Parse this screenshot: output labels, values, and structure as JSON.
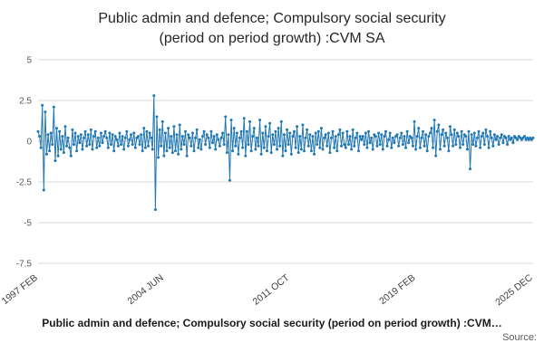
{
  "title": {
    "line1": "Public admin and defence; Compulsory social security",
    "line2": "(period on period growth) :CVM SA"
  },
  "legend_label": "Public admin and defence; Compulsory social security (period on period growth) :CVM…",
  "source_label": "Source:",
  "colors": {
    "series": "#1f77b4",
    "gridline": "#d9d9d9",
    "tick_text": "#595959",
    "x_tick_text": "#404040"
  },
  "chart_data": {
    "type": "line",
    "title": "Public admin and defence; Compulsory social security (period on period growth) :CVM SA",
    "xlabel": "",
    "ylabel": "",
    "ylim": [
      -7.5,
      5
    ],
    "y_ticks": [
      5,
      2.5,
      0,
      -2.5,
      -5,
      -7.5
    ],
    "grid": true,
    "legend_position": "bottom",
    "x_start": "1997 FEB",
    "x_end": "2025 DEC",
    "frequency": "monthly",
    "x_ticks": [
      {
        "index": 0,
        "label": "1997 FEB"
      },
      {
        "index": 88,
        "label": "2004 JUN"
      },
      {
        "index": 176,
        "label": "2011 OCT"
      },
      {
        "index": 264,
        "label": "2019 FEB"
      },
      {
        "index": 346,
        "label": "2025 DEC"
      }
    ],
    "values": [
      0.6,
      0.3,
      -0.4,
      2.2,
      -3.0,
      1.8,
      -0.8,
      0.4,
      -0.6,
      0.5,
      -0.2,
      2.1,
      -1.2,
      0.8,
      -0.9,
      0.6,
      -0.5,
      0.3,
      -0.7,
      0.9,
      -0.3,
      0.2,
      -0.4,
      -0.9,
      0.7,
      -0.2,
      0.5,
      -0.6,
      0.3,
      -0.1,
      0.4,
      -0.5,
      0.2,
      0.6,
      -0.3,
      0.4,
      -0.2,
      0.7,
      -0.5,
      0.3,
      0.6,
      -0.4,
      0.2,
      -0.3,
      0.5,
      -0.1,
      0.3,
      0.6,
      0.2,
      -0.4,
      0.5,
      -0.2,
      0.4,
      -0.6,
      0.3,
      0.1,
      -0.3,
      0.5,
      -0.2,
      0.3,
      -0.5,
      0.2,
      0.6,
      -0.3,
      0.1,
      0.4,
      -0.2,
      0.5,
      -0.4,
      0.2,
      0.3,
      -0.2,
      0.4,
      -0.6,
      0.8,
      -0.4,
      0.6,
      -0.3,
      0.5,
      0.2,
      -0.5,
      2.8,
      -4.2,
      1.5,
      -1.0,
      0.7,
      -0.3,
      1.2,
      -0.9,
      0.5,
      -0.6,
      0.8,
      -0.4,
      0.3,
      -0.7,
      0.9,
      -0.6,
      0.4,
      -0.8,
      1.0,
      -0.5,
      0.3,
      -0.2,
      0.6,
      -0.9,
      0.4,
      0.2,
      -0.3,
      0.5,
      -0.6,
      0.2,
      0.7,
      -0.4,
      0.1,
      -0.5,
      0.3,
      0.6,
      -0.2,
      0.4,
      0.2,
      -0.4,
      0.6,
      -0.1,
      0.3,
      -0.5,
      0.4,
      0.1,
      -0.3,
      0.2,
      0.5,
      -0.2,
      1.5,
      -0.7,
      0.4,
      -2.4,
      1.3,
      -0.6,
      0.8,
      -0.3,
      0.5,
      -0.8,
      0.2,
      0.6,
      -0.4,
      1.4,
      -0.9,
      0.6,
      -0.2,
      1.2,
      -0.6,
      0.3,
      0.8,
      -0.5,
      0.2,
      -0.3,
      1.3,
      -0.8,
      0.5,
      -0.4,
      0.9,
      -0.6,
      0.3,
      1.1,
      -0.7,
      0.4,
      -0.2,
      0.6,
      -0.5,
      0.8,
      -0.3,
      1.2,
      -0.9,
      0.4,
      -0.6,
      0.7,
      -0.2,
      0.5,
      -0.8,
      0.3,
      0.6,
      -0.4,
      0.9,
      -0.7,
      0.3,
      -0.5,
      1.0,
      -0.6,
      0.2,
      0.7,
      -0.3,
      0.4,
      -0.6,
      0.3,
      -0.8,
      0.5,
      -0.2,
      0.6,
      -0.4,
      0.8,
      -0.5,
      0.2,
      0.4,
      -0.3,
      0.5,
      -0.7,
      0.2,
      0.6,
      -0.4,
      0.3,
      -0.6,
      0.4,
      0.7,
      -0.3,
      0.5,
      -0.2,
      -0.4,
      0.6,
      -0.2,
      0.3,
      -0.5,
      0.7,
      -0.3,
      0.2,
      0.5,
      -0.6,
      0.3,
      0.1,
      0.3,
      -0.2,
      0.5,
      -0.4,
      0.6,
      -0.1,
      0.2,
      -0.5,
      0.4,
      0.3,
      -0.3,
      0.5,
      -0.2,
      0.4,
      -0.5,
      0.3,
      0.6,
      -0.3,
      0.1,
      0.5,
      -0.4,
      0.2,
      -0.1,
      0.3,
      0.4,
      -0.3,
      0.2,
      0.5,
      -0.2,
      0.3,
      -0.4,
      0.6,
      -0.1,
      0.3,
      0.2,
      -0.3,
      1.2,
      -0.5,
      0.3,
      0.8,
      -0.4,
      0.2,
      0.6,
      -0.3,
      0.4,
      -0.6,
      0.3,
      0.5,
      0.8,
      -0.4,
      1.3,
      -0.9,
      0.6,
      1.0,
      -0.5,
      0.4,
      0.7,
      -0.3,
      0.5,
      0.2,
      -0.6,
      0.9,
      0.4,
      -0.3,
      0.7,
      -0.2,
      0.5,
      0.3,
      -0.4,
      0.6,
      -0.2,
      0.4,
      0.3,
      -0.5,
      0.6,
      -1.7,
      0.4,
      -0.2,
      0.5,
      -0.3,
      0.2,
      0.6,
      -0.4,
      0.3,
      0.5,
      -0.2,
      0.7,
      0.3,
      -0.4,
      0.6,
      0.2,
      -0.3,
      0.4,
      0.1,
      0.3,
      -0.2,
      0.2,
      0.4,
      -0.1,
      0.3,
      0.2,
      -0.2,
      0.3,
      0.1,
      0.2,
      -0.1,
      0.3,
      0.2,
      0.1,
      0.3,
      0.2,
      0.1,
      0.2,
      0.3,
      0.1,
      0.2,
      0.1,
      0.2,
      0.1,
      0.2
    ]
  }
}
